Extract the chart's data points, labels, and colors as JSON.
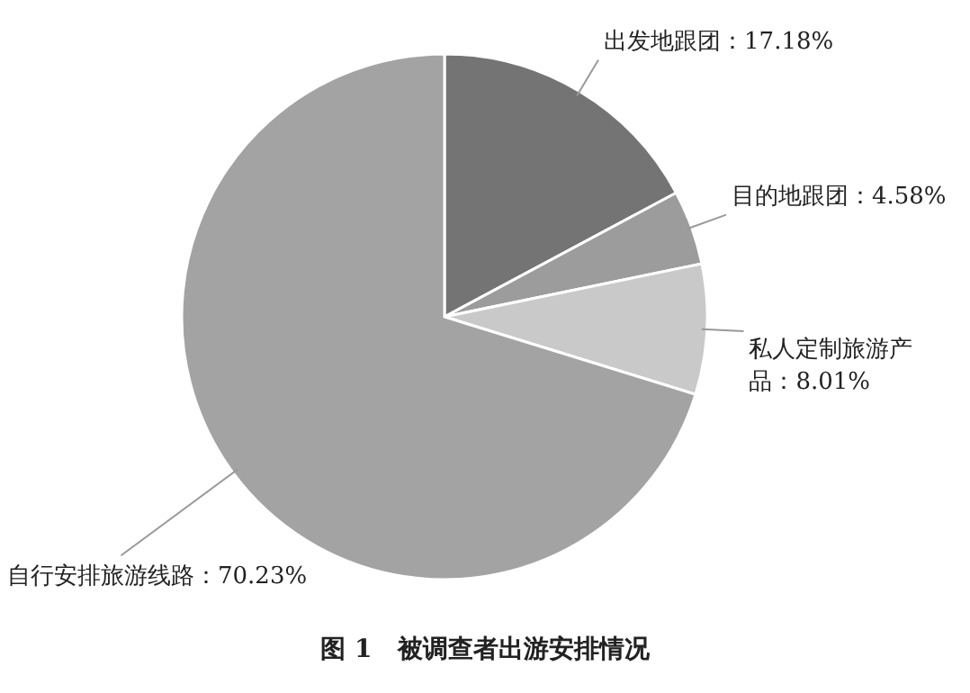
{
  "chart_data": {
    "type": "pie",
    "title": "图 1　被调查者出游安排情况",
    "categories": [
      "出发地跟团",
      "目的地跟团",
      "私人定制旅游产品",
      "自行安排旅游线路"
    ],
    "values": [
      17.18,
      4.58,
      8.01,
      70.23
    ],
    "colors": [
      "#747474",
      "#9c9c9c",
      "#c9c9c9",
      "#a3a3a3"
    ],
    "value_labels": [
      "17.18%",
      "4.58%",
      "8.01%",
      "70.23%"
    ]
  }
}
